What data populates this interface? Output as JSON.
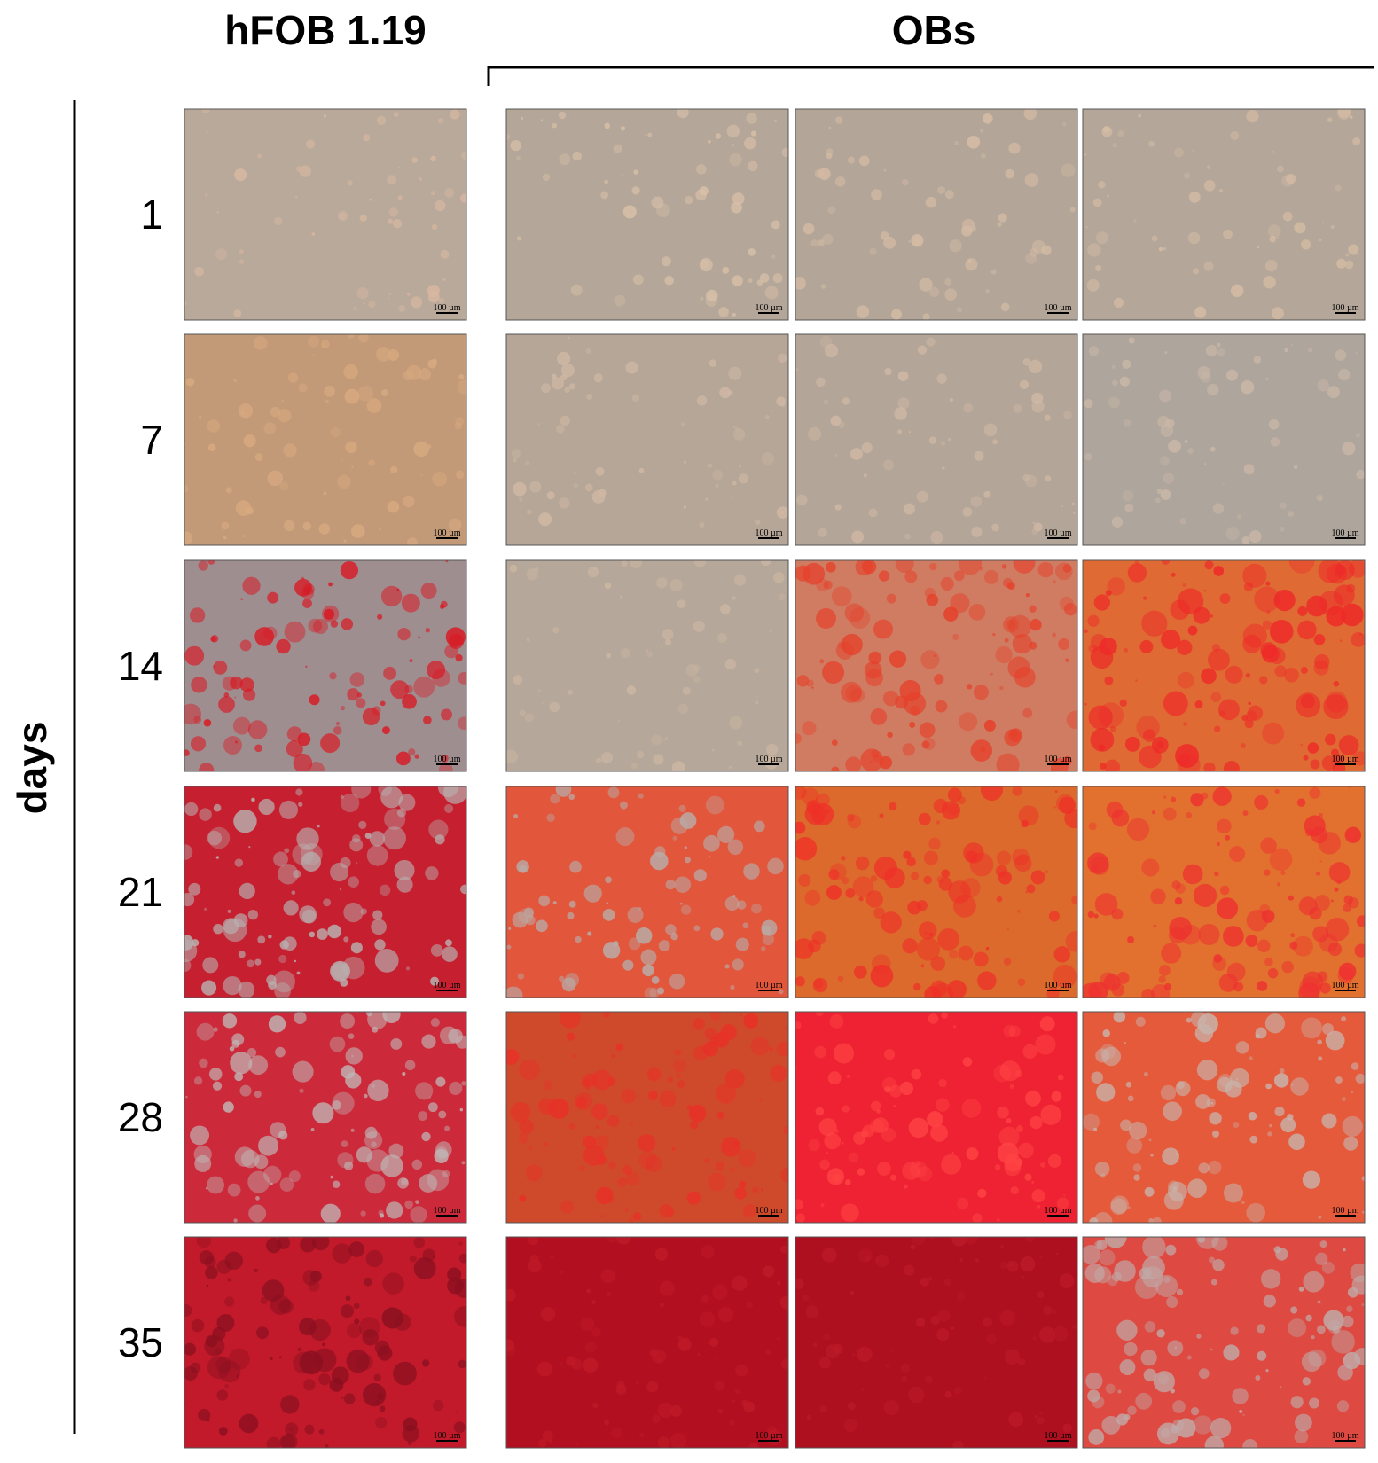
{
  "header": {
    "left": "hFOB 1.19",
    "right": "OBs"
  },
  "axis_label": "days",
  "rows": [
    {
      "label": "1"
    },
    {
      "label": "7"
    },
    {
      "label": "14"
    },
    {
      "label": "21"
    },
    {
      "label": "28"
    },
    {
      "label": "35"
    }
  ],
  "scale_bar": "100 µm"
}
